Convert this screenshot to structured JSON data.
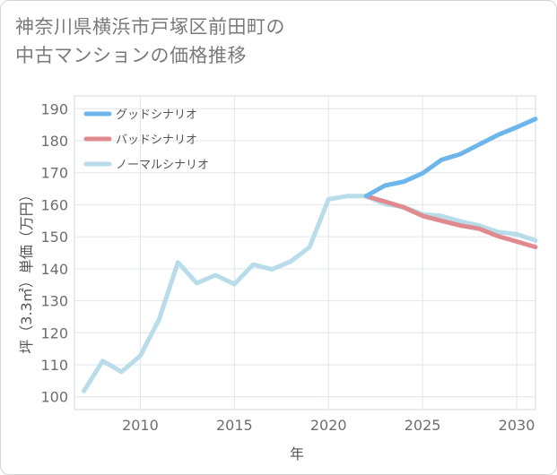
{
  "title_line1": "神奈川県横浜市戸塚区前田町の",
  "title_line2": "中古マンションの価格推移",
  "chart_data": {
    "type": "line",
    "xlabel": "年",
    "ylabel": "坪（3.3㎡）単価（万円）",
    "xlim": [
      2006.5,
      2031
    ],
    "ylim": [
      96,
      194
    ],
    "xticks": [
      2010,
      2015,
      2020,
      2025,
      2030
    ],
    "yticks": [
      100,
      110,
      120,
      130,
      140,
      150,
      160,
      170,
      180,
      190
    ],
    "grid": true,
    "legend_position": "top-left",
    "series": [
      {
        "name": "グッドシナリオ",
        "color": "#6cb6ec",
        "x": [
          2022,
          2023,
          2024,
          2025,
          2026,
          2027,
          2028,
          2029,
          2030,
          2031
        ],
        "values": [
          162.7,
          166.0,
          167.2,
          169.8,
          174.0,
          175.8,
          178.8,
          181.8,
          184.2,
          186.8
        ]
      },
      {
        "name": "バッドシナリオ",
        "color": "#e08a90",
        "x": [
          2022,
          2023,
          2024,
          2025,
          2026,
          2027,
          2028,
          2029,
          2030,
          2031
        ],
        "values": [
          162.7,
          161.0,
          159.2,
          156.5,
          155.0,
          153.5,
          152.5,
          150.2,
          148.5,
          146.8
        ]
      },
      {
        "name": "ノーマルシナリオ",
        "color": "#b8dce9",
        "x": [
          2007,
          2008,
          2009,
          2010,
          2011,
          2012,
          2013,
          2014,
          2015,
          2016,
          2017,
          2018,
          2019,
          2020,
          2021,
          2022,
          2023,
          2024,
          2025,
          2026,
          2027,
          2028,
          2029,
          2030,
          2031
        ],
        "values": [
          101.8,
          111.2,
          107.8,
          112.8,
          124.2,
          142.0,
          135.5,
          138.0,
          135.2,
          141.3,
          139.8,
          142.3,
          146.8,
          161.7,
          162.7,
          162.7,
          160.2,
          159.3,
          157.0,
          156.5,
          154.8,
          153.5,
          151.5,
          150.8,
          148.8
        ]
      }
    ]
  }
}
